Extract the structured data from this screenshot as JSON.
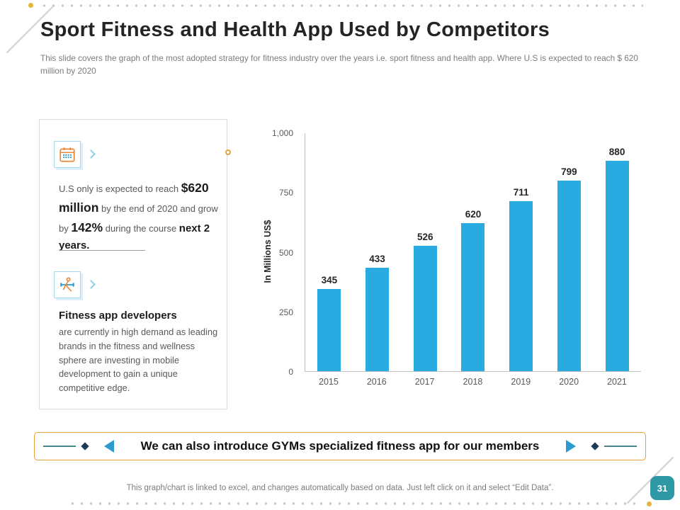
{
  "slide": {
    "title": "Sport Fitness and Health App Used by Competitors",
    "subtitle": "This slide covers the graph of the most adopted strategy for fitness industry over the years i.e. sport fitness and health app.  Where  U.S is expected to reach $ 620 million by 2020",
    "footer": "This graph/chart is linked to excel, and changes automatically based on data. Just left click on it and select “Edit Data”.",
    "page_number": "31"
  },
  "left_panel": {
    "stat": {
      "t1": "U.S only is expected  to reach ",
      "t2": "$620 million",
      "t3": " by the end of 2020 and grow by ",
      "t4": "142%",
      "t5": " during the course ",
      "t6": "next 2 years."
    },
    "developers": {
      "heading": "Fitness app developers",
      "body": "are currently in high demand as leading brands in the fitness and wellness sphere are investing in mobile development to gain a unique competitive edge."
    }
  },
  "banner": {
    "text": "We can also introduce GYMs specialized fitness app for our members"
  },
  "chart_data": {
    "type": "bar",
    "categories": [
      "2015",
      "2016",
      "2017",
      "2018",
      "2019",
      "2020",
      "2021"
    ],
    "values": [
      345,
      433,
      526,
      620,
      711,
      799,
      880
    ],
    "title": "",
    "xlabel": "",
    "ylabel": "In Millions US$",
    "ylim": [
      0,
      1000
    ],
    "yticks": [
      0,
      250,
      500,
      750,
      1000
    ],
    "ytick_labels": [
      "0",
      "250",
      "500",
      "750",
      "1,000"
    ],
    "bar_color": "#29ABE2",
    "grid": false,
    "legend": false,
    "data_labels": true
  },
  "colors": {
    "accent_orange": "#E9A23B",
    "bar_blue": "#29ABE2",
    "badge_teal": "#2E98A4",
    "arrow_blue": "#2D9AD0",
    "diamond_navy": "#1E3C5A",
    "connector_teal": "#47848E",
    "gold_dot": "#E8B53C"
  }
}
